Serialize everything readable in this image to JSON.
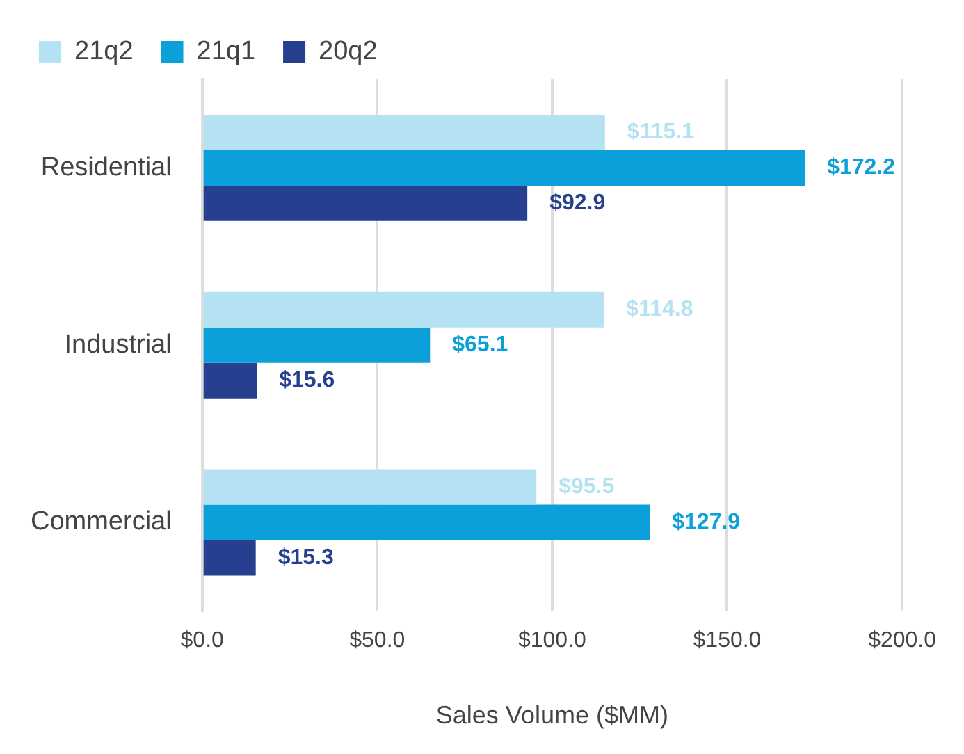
{
  "chart_data": {
    "type": "bar",
    "orientation": "horizontal",
    "xlabel": "Sales Volume ($MM)",
    "categories": [
      "Residential",
      "Industrial",
      "Commercial"
    ],
    "series": [
      {
        "name": "21q2",
        "color": "#b5e2f3",
        "values": [
          115.1,
          114.8,
          95.5
        ],
        "value_labels": [
          "$115.1",
          "$114.8",
          "$95.5"
        ]
      },
      {
        "name": "21q1",
        "color": "#0ca0da",
        "values": [
          172.2,
          65.1,
          127.9
        ],
        "value_labels": [
          "$172.2",
          "$65.1",
          "$127.9"
        ]
      },
      {
        "name": "20q2",
        "color": "#263f8f",
        "values": [
          92.9,
          15.6,
          15.3
        ],
        "value_labels": [
          "$92.9",
          "$15.6",
          "$15.3"
        ]
      }
    ],
    "xlim": [
      0,
      200
    ],
    "xticks": [
      {
        "value": 0,
        "label": "$0.0"
      },
      {
        "value": 50,
        "label": "$50.0"
      },
      {
        "value": 100,
        "label": "$100.0"
      },
      {
        "value": 150,
        "label": "$150.0"
      },
      {
        "value": 200,
        "label": "$200.0"
      }
    ],
    "grid": "x",
    "legend": "top left"
  }
}
